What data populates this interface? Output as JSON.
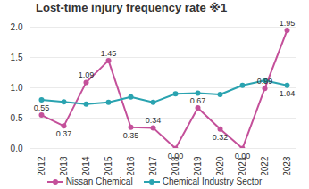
{
  "chart_data": {
    "type": "line",
    "title": "Lost-time injury frequency rate ※1",
    "categories": [
      "2012",
      "2013",
      "2014",
      "2015",
      "2016",
      "2017",
      "2018",
      "2019",
      "2020",
      "2021",
      "2022",
      "2023"
    ],
    "series": [
      {
        "name": "Nissan Chemical",
        "color": "#c4509a",
        "marker": "circle",
        "values": [
          0.55,
          0.37,
          1.09,
          1.45,
          0.35,
          0.34,
          0.0,
          0.67,
          0.32,
          0.0,
          0.99,
          1.95
        ],
        "value_labels": [
          "0.55",
          "0.37",
          "1.09",
          "1.45",
          "0.35",
          "0.34",
          "0.00",
          "0.67",
          "0.32",
          "0.00",
          "0.99",
          "1.95"
        ]
      },
      {
        "name": "Chemical Industry Sector",
        "color": "#2aa3b0",
        "marker": "circle",
        "values": [
          0.8,
          0.77,
          0.73,
          0.76,
          0.85,
          0.76,
          0.9,
          0.91,
          0.89,
          1.04,
          1.12,
          1.04
        ],
        "value_labels": [
          null,
          null,
          null,
          null,
          null,
          null,
          null,
          null,
          null,
          null,
          null,
          "1.04"
        ]
      }
    ],
    "ylim": [
      0,
      2
    ],
    "yticks": [
      {
        "value": 0,
        "label": "0.0"
      },
      0.5,
      {
        "value": 1,
        "label": "1.0"
      },
      1.5,
      {
        "value": 2,
        "label": "2.0"
      }
    ],
    "grid": true,
    "data_labels": true,
    "legend": "bottom"
  }
}
